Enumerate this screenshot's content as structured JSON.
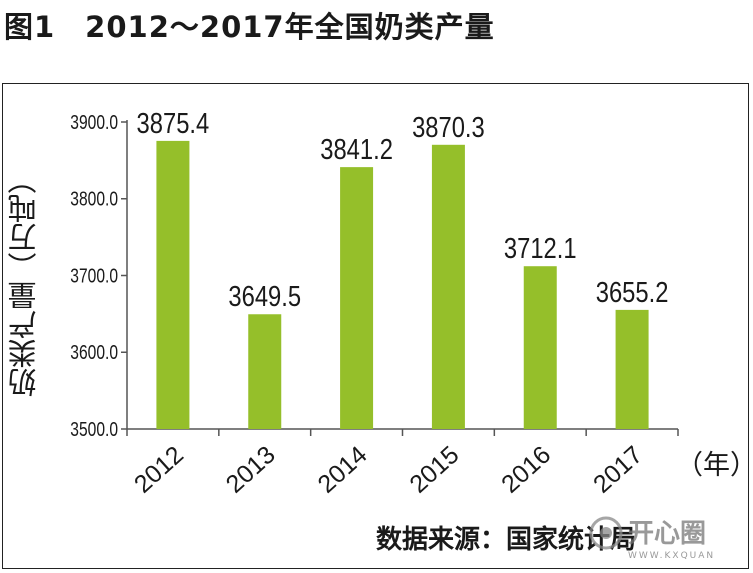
{
  "title": "图1　2012～2017年全国奶类产量",
  "source_text": "数据来源：国家统计局",
  "watermark_text": "开心圈",
  "watermark_subtext": "WWW.KXQUAN",
  "colors": {
    "bar": "#95bf2a",
    "axis": "#555555",
    "text": "#1a1a1a"
  },
  "chart_data": {
    "type": "bar",
    "categories": [
      "2012",
      "2013",
      "2014",
      "2015",
      "2016",
      "2017"
    ],
    "values": [
      3875.4,
      3649.5,
      3841.2,
      3870.3,
      3712.1,
      3655.2
    ],
    "value_labels": [
      "3875.4",
      "3649.5",
      "3841.2",
      "3870.3",
      "3712.1",
      "3655.2"
    ],
    "title": "2012～2017年全国奶类产量",
    "xlabel": "（年）",
    "ylabel": "奶类产量（万吨）",
    "ylim": [
      3500,
      3900
    ],
    "yticks": [
      3500,
      3600,
      3700,
      3800,
      3900
    ],
    "ytick_labels": [
      "3500.0",
      "3600.0",
      "3700.0",
      "3800.0",
      "3900.0"
    ],
    "grid": false,
    "legend": "none"
  }
}
